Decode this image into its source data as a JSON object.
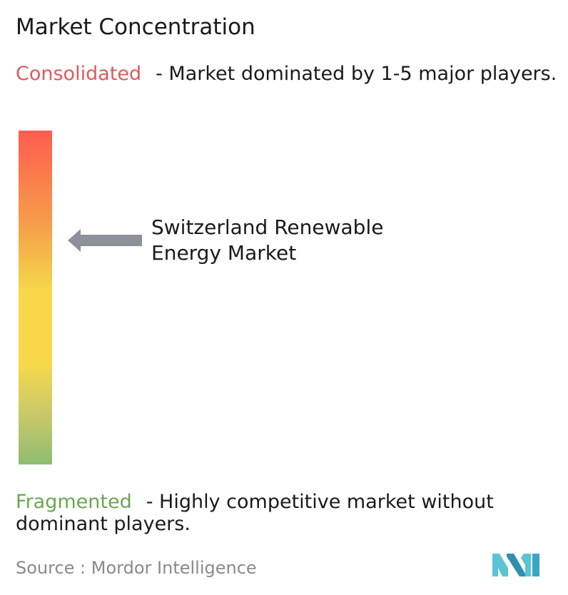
{
  "title": "Market Concentration",
  "consolidated": {
    "tag": "Consolidated",
    "text": "- Market dominated by 1-5 major players.",
    "color": "#e05a5a"
  },
  "fragmented": {
    "tag": "Fragmented",
    "text": "- Highly competitive market without dominant players.",
    "color": "#6aa84f"
  },
  "marker": {
    "label_line1": "Switzerland Renewable",
    "label_line2": "Energy Market",
    "icon": "left-arrow-icon",
    "level": 0.32
  },
  "gauge": {
    "colors": [
      "#ff5c4f",
      "#f5a34a",
      "#f7d84b",
      "#8fbd72"
    ]
  },
  "source": {
    "text": "Source :  Mordor Intelligence",
    "logo": "mordor-intelligence-logo"
  }
}
